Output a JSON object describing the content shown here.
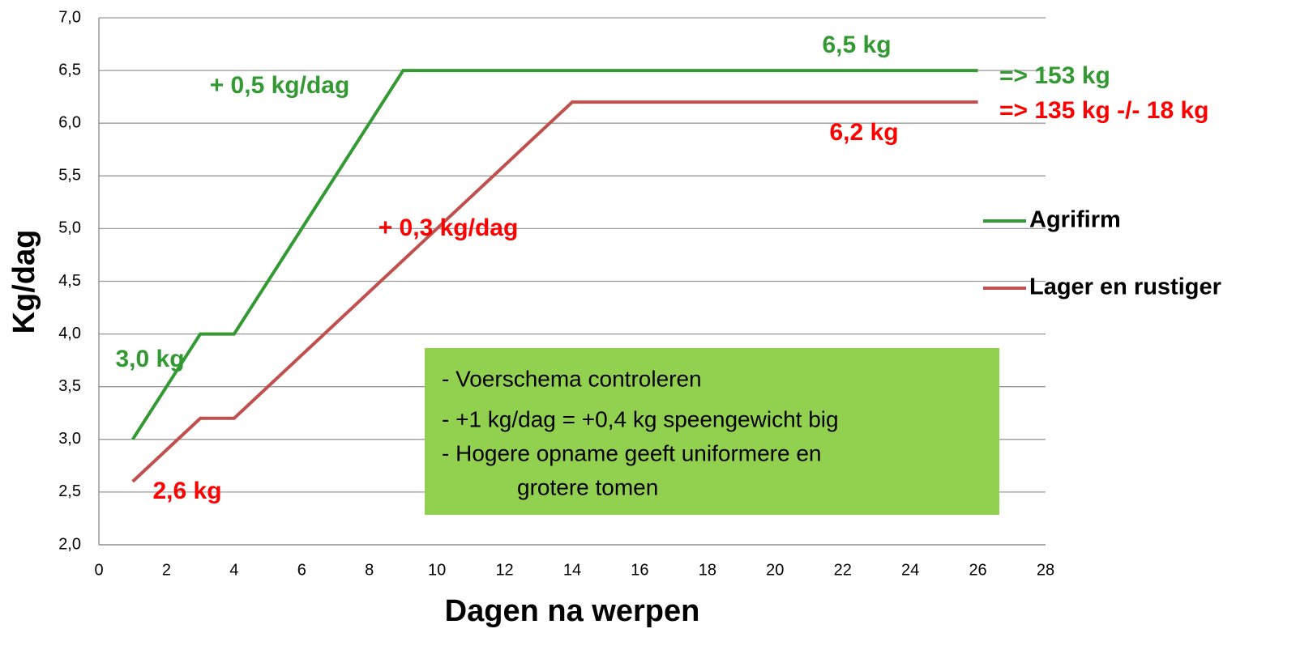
{
  "chart_data": {
    "type": "line",
    "xlabel": "Dagen na werpen",
    "ylabel": "Kg/dag",
    "xlim": [
      0,
      28
    ],
    "xticks": [
      0,
      2,
      4,
      6,
      8,
      10,
      12,
      14,
      16,
      18,
      20,
      22,
      24,
      26,
      28
    ],
    "ylim": [
      2,
      7
    ],
    "yticks": [
      {
        "value": 2,
        "label": "2,0"
      },
      {
        "value": 2.5,
        "label": "2,5"
      },
      {
        "value": 3,
        "label": "3,0"
      },
      {
        "value": 3.5,
        "label": "3,5"
      },
      {
        "value": 4,
        "label": "4,0"
      },
      {
        "value": 4.5,
        "label": "4,5"
      },
      {
        "value": 5,
        "label": "5,0"
      },
      {
        "value": 5.5,
        "label": "5,5"
      },
      {
        "value": 6,
        "label": "6,0"
      },
      {
        "value": 6.5,
        "label": "6,5"
      },
      {
        "value": 7,
        "label": "7,0"
      }
    ],
    "grid": true,
    "legend": "right",
    "series": [
      {
        "name": "Agrifirm",
        "color": "#339933",
        "x": [
          1,
          3,
          4,
          9,
          26
        ],
        "values": [
          3.0,
          4.0,
          4.0,
          6.5,
          6.5
        ]
      },
      {
        "name": "Lager en rustiger",
        "color": "#c0504d",
        "x": [
          1,
          3,
          4,
          14,
          26
        ],
        "values": [
          2.6,
          3.2,
          3.2,
          6.2,
          6.2
        ]
      }
    ],
    "annotations": [
      {
        "text": "6,5 kg",
        "color": "#339933"
      },
      {
        "text": "+ 0,5 kg/dag",
        "color": "#339933"
      },
      {
        "text": "=> 153 kg",
        "color": "#339933"
      },
      {
        "text": "=> 135 kg -/- 18 kg",
        "color": "#ff0000"
      },
      {
        "text": "6,2 kg",
        "color": "#ff0000"
      },
      {
        "text": "+ 0,3 kg/dag",
        "color": "#ff0000"
      },
      {
        "text": "3,0 kg",
        "color": "#339933"
      },
      {
        "text": "2,6 kg",
        "color": "#ff0000"
      }
    ],
    "textbox": {
      "color": "#92d050",
      "lines": [
        "- Voerschema controleren",
        "- +1 kg/dag = +0,4 kg speengewicht big",
        "- Hogere opname geeft uniformere en",
        "grotere tomen"
      ]
    }
  }
}
